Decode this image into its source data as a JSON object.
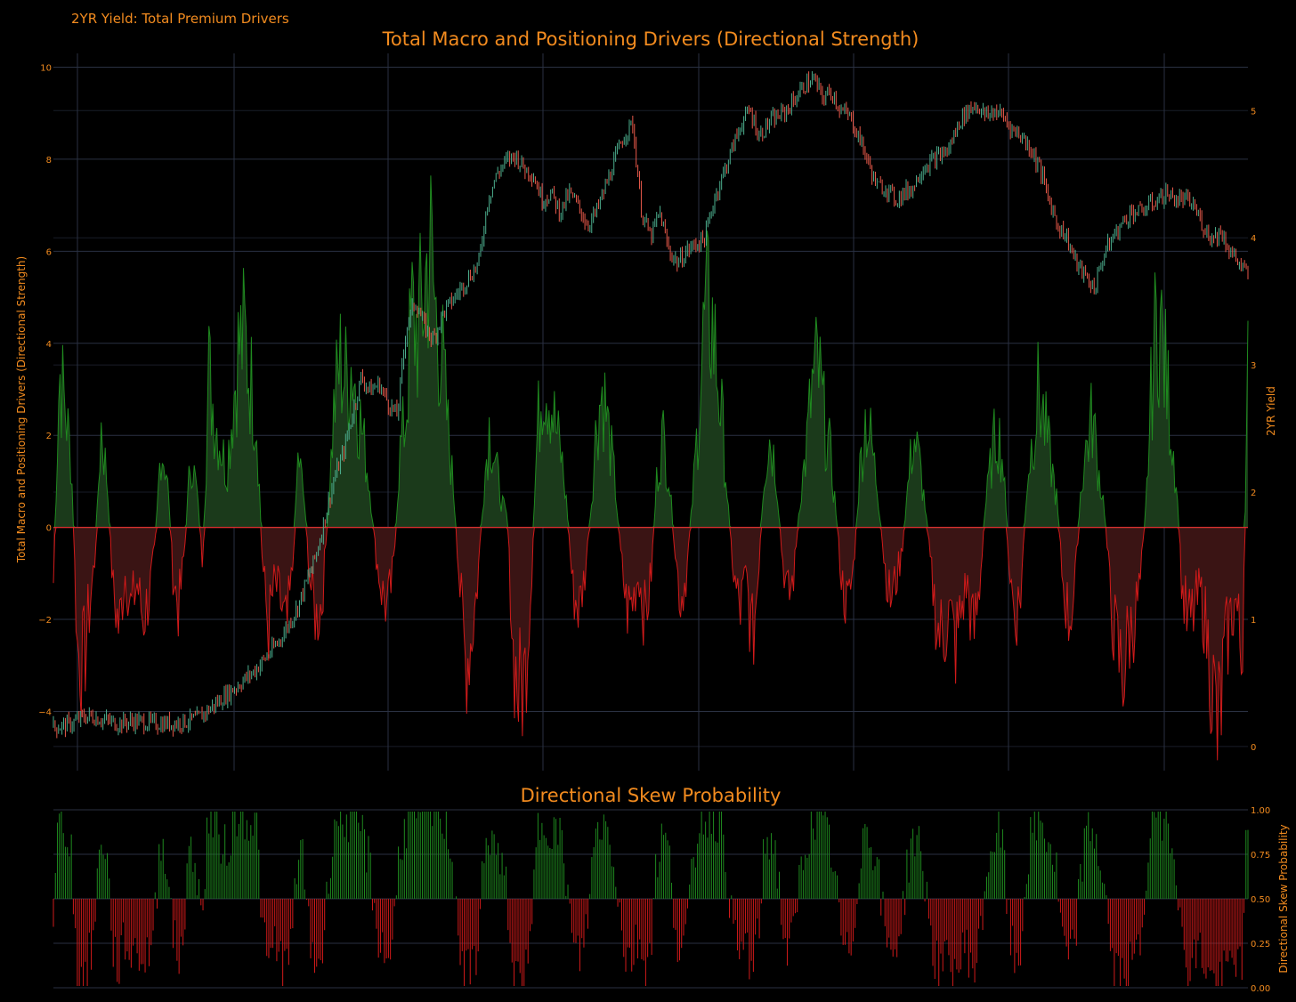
{
  "page": {
    "title": "2YR Yield: Total Premium Drivers"
  },
  "colors": {
    "background": "#000000",
    "text": "#f28b1f",
    "grid": "#2a3142",
    "positive_line": "#1f8a1f",
    "positive_fill": "#1b3a1b",
    "negative_line": "#d11a1a",
    "negative_fill": "#3a1414",
    "candle_up": "#4caf8e",
    "candle_down": "#e8594a"
  },
  "chart_data": [
    {
      "type": "area",
      "title": "Total Macro and Positioning Drivers (Directional Strength)",
      "ylabel": "Total Macro and Positioning Drivers (Directional Strength)",
      "y2label": "2YR Yield",
      "ylim": [
        -4.9,
        10.3
      ],
      "y2lim": [
        -0.05,
        5.45
      ],
      "yticks": [
        "−4",
        "−2",
        "0",
        "2",
        "4",
        "6",
        "8",
        "10"
      ],
      "ytick_values": [
        -4,
        -2,
        0,
        2,
        4,
        6,
        8,
        10
      ],
      "y2ticks": [
        "0",
        "1",
        "2",
        "3",
        "4",
        "5"
      ],
      "y2tick_values": [
        0,
        1,
        2,
        3,
        4,
        5
      ],
      "grid": true,
      "series": [
        {
          "kind": "area-oscillator",
          "description_points_x": [
            0,
            1,
            2,
            3,
            4,
            5,
            6,
            7,
            8,
            9,
            10,
            11,
            12,
            13,
            14,
            15,
            16,
            17,
            18,
            19,
            20,
            21,
            22,
            23,
            24,
            25,
            26,
            27,
            28,
            29,
            30,
            31,
            32,
            33,
            34,
            35,
            36,
            37,
            38,
            39,
            40,
            41,
            42,
            43,
            44,
            45,
            46,
            47,
            48,
            49,
            50,
            51,
            52,
            53,
            54,
            55,
            56,
            57,
            58,
            59,
            60,
            61,
            62,
            63,
            64,
            65,
            66,
            67,
            68,
            69,
            70,
            71,
            72,
            73,
            74,
            75,
            76,
            77,
            78,
            79,
            80,
            81,
            82,
            83,
            84,
            85,
            86,
            87,
            88,
            89,
            90,
            91,
            92,
            93,
            94,
            95,
            96,
            97,
            98,
            99,
            100,
            101,
            102,
            103,
            104,
            105,
            106,
            107,
            108,
            109,
            110,
            111,
            112,
            113,
            114,
            115,
            116,
            117,
            118,
            119,
            120,
            121,
            122,
            123,
            124,
            125,
            126,
            127,
            128,
            129,
            130,
            131,
            132,
            133,
            134,
            135,
            136,
            137,
            138,
            139,
            140,
            141,
            142,
            143,
            144,
            145,
            146,
            147,
            148,
            149,
            150,
            151,
            152,
            153,
            154,
            155,
            156,
            157,
            158,
            159,
            160,
            161,
            162,
            163,
            164,
            165,
            166,
            167,
            168,
            169,
            170,
            171,
            172,
            173,
            174,
            175,
            176,
            177,
            178,
            179,
            180,
            181,
            182,
            183,
            184,
            185,
            186,
            187,
            188,
            189,
            190,
            191,
            192,
            193,
            194,
            195,
            196,
            197,
            198,
            199
          ],
          "values": [
            -1.2,
            3.4,
            2.6,
            1.4,
            -2.6,
            -3.1,
            -1.8,
            -0.6,
            2.2,
            1.0,
            -1.4,
            -2.2,
            -1.0,
            -1.8,
            -1.2,
            -2.0,
            -1.5,
            -0.5,
            1.8,
            1.2,
            -1.0,
            -1.8,
            -0.4,
            1.6,
            0.8,
            -0.8,
            3.4,
            2.4,
            1.8,
            1.2,
            2.6,
            3.9,
            4.1,
            3.2,
            2.4,
            -0.8,
            -2.2,
            -1.2,
            -1.6,
            -2.4,
            -1.0,
            1.6,
            0.6,
            -1.2,
            -2.0,
            -1.6,
            0.4,
            2.6,
            3.6,
            3.2,
            3.6,
            2.6,
            1.8,
            0.8,
            -0.6,
            -1.4,
            -1.8,
            -0.8,
            1.6,
            2.4,
            4.6,
            4.2,
            5.0,
            6.2,
            4.6,
            3.8,
            2.2,
            0.8,
            -1.2,
            -3.0,
            -2.4,
            -1.2,
            0.8,
            2.2,
            1.4,
            0.6,
            0.2,
            -2.8,
            -3.7,
            -3.2,
            -1.2,
            2.0,
            3.4,
            3.0,
            2.2,
            1.6,
            0.4,
            -1.4,
            -1.8,
            -1.0,
            0.4,
            2.4,
            3.0,
            2.0,
            1.0,
            -0.6,
            -1.8,
            -1.6,
            -1.0,
            -2.0,
            -1.2,
            1.0,
            2.0,
            1.2,
            -0.4,
            -1.6,
            -1.0,
            0.6,
            2.4,
            4.4,
            4.7,
            3.6,
            2.2,
            0.4,
            -1.2,
            -1.8,
            -1.0,
            -2.6,
            -1.0,
            1.2,
            2.0,
            1.2,
            -0.6,
            -1.6,
            -1.0,
            0.6,
            1.6,
            3.0,
            3.5,
            2.4,
            1.6,
            0.4,
            -1.2,
            -1.8,
            -0.8,
            1.2,
            2.4,
            1.8,
            0.8,
            -0.6,
            -1.6,
            -1.2,
            -0.6,
            0.8,
            2.0,
            1.4,
            0.4,
            -1.0,
            -2.2,
            -2.4,
            -1.8,
            -2.6,
            -1.8,
            -1.2,
            -2.4,
            -1.4,
            0.4,
            1.4,
            2.2,
            1.4,
            -0.8,
            -2.0,
            -1.4,
            1.0,
            2.0,
            3.0,
            2.2,
            1.4,
            0.6,
            -1.2,
            -2.0,
            -1.4,
            0.8,
            1.8,
            2.4,
            1.2,
            0.4,
            -1.6,
            -2.6,
            -3.2,
            -2.4,
            -2.0,
            -1.2,
            0.6,
            3.4,
            4.8,
            3.6,
            2.4,
            1.0,
            -1.4,
            -2.2,
            -1.8,
            -1.4,
            -2.2,
            -3.4,
            -4.6,
            -3.0,
            -2.0,
            -1.6,
            -3.0,
            3.5
          ]
        },
        {
          "kind": "candlestick",
          "name": "2YR Yield",
          "values": [
            0.15,
            0.16,
            0.18,
            0.22,
            0.24,
            0.22,
            0.2,
            0.18,
            0.19,
            0.2,
            0.19,
            0.18,
            0.18,
            0.18,
            0.19,
            0.2,
            0.22,
            0.28,
            0.34,
            0.4,
            0.46,
            0.52,
            0.58,
            0.66,
            0.74,
            0.84,
            0.96,
            1.1,
            1.3,
            1.5,
            1.8,
            2.1,
            2.3,
            2.6,
            2.9,
            2.8,
            2.85,
            2.7,
            2.6,
            3.3,
            3.5,
            3.3,
            3.2,
            3.4,
            3.5,
            3.6,
            3.7,
            3.8,
            4.3,
            4.5,
            4.6,
            4.65,
            4.55,
            4.5,
            4.3,
            4.35,
            4.2,
            4.35,
            4.25,
            4.1,
            4.2,
            4.4,
            4.6,
            4.8,
            4.9,
            4.2,
            4.0,
            4.2,
            3.9,
            3.8,
            3.9,
            3.95,
            4.0,
            4.3,
            4.5,
            4.7,
            4.9,
            5.0,
            4.8,
            4.9,
            4.95,
            5.0,
            5.1,
            5.2,
            5.25,
            5.1,
            5.15,
            5.0,
            4.95,
            4.8,
            4.6,
            4.4,
            4.4,
            4.3,
            4.35,
            4.4,
            4.55,
            4.6,
            4.65,
            4.7,
            4.9,
            5.0,
            5.05,
            4.95,
            5.0,
            4.95,
            4.85,
            4.8,
            4.7,
            4.55,
            4.3,
            4.1,
            4.0,
            3.8,
            3.7,
            3.6,
            3.85,
            4.0,
            4.1,
            4.2,
            4.2,
            4.25,
            4.3,
            4.35,
            4.3,
            4.3,
            4.25,
            4.1,
            4.0,
            4.05,
            3.9,
            3.8,
            3.7
          ],
          "description": "2YR Yield candlestick on right axis"
        }
      ]
    },
    {
      "type": "bar",
      "title": "Directional Skew Probability",
      "ylabel": "Directional Skew Probability",
      "ylim": [
        0,
        1
      ],
      "yticks": [
        "0.00",
        "0.25",
        "0.50",
        "0.75",
        "1.00"
      ],
      "ytick_values": [
        0,
        0.25,
        0.5,
        0.75,
        1
      ],
      "baseline": 0.5,
      "grid": true
    }
  ]
}
